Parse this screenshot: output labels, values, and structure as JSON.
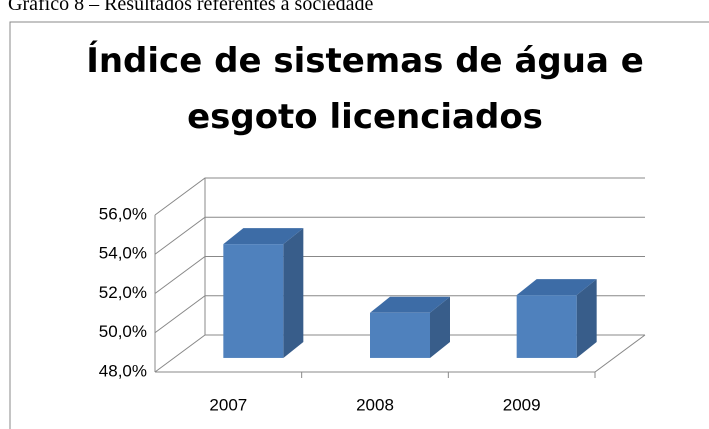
{
  "caption": "Gráfico 8 – Resultados referentes à sociedade",
  "chart_data": {
    "type": "bar3d",
    "title": "Índice de sistemas de água e esgoto licenciados",
    "title_lines": [
      "Índice de sistemas de água e",
      "esgoto licenciados"
    ],
    "categories": [
      "2007",
      "2008",
      "2009"
    ],
    "values": [
      53.8,
      50.3,
      51.2
    ],
    "color": "#4f81bd",
    "ylim": [
      48,
      56
    ],
    "yticks": [
      {
        "value": 48,
        "label": "48,0%"
      },
      {
        "value": 50,
        "label": "50,0%"
      },
      {
        "value": 52,
        "label": "52,0%"
      },
      {
        "value": 54,
        "label": "54,0%"
      },
      {
        "value": 56,
        "label": "56,0%"
      }
    ],
    "grid": true
  }
}
